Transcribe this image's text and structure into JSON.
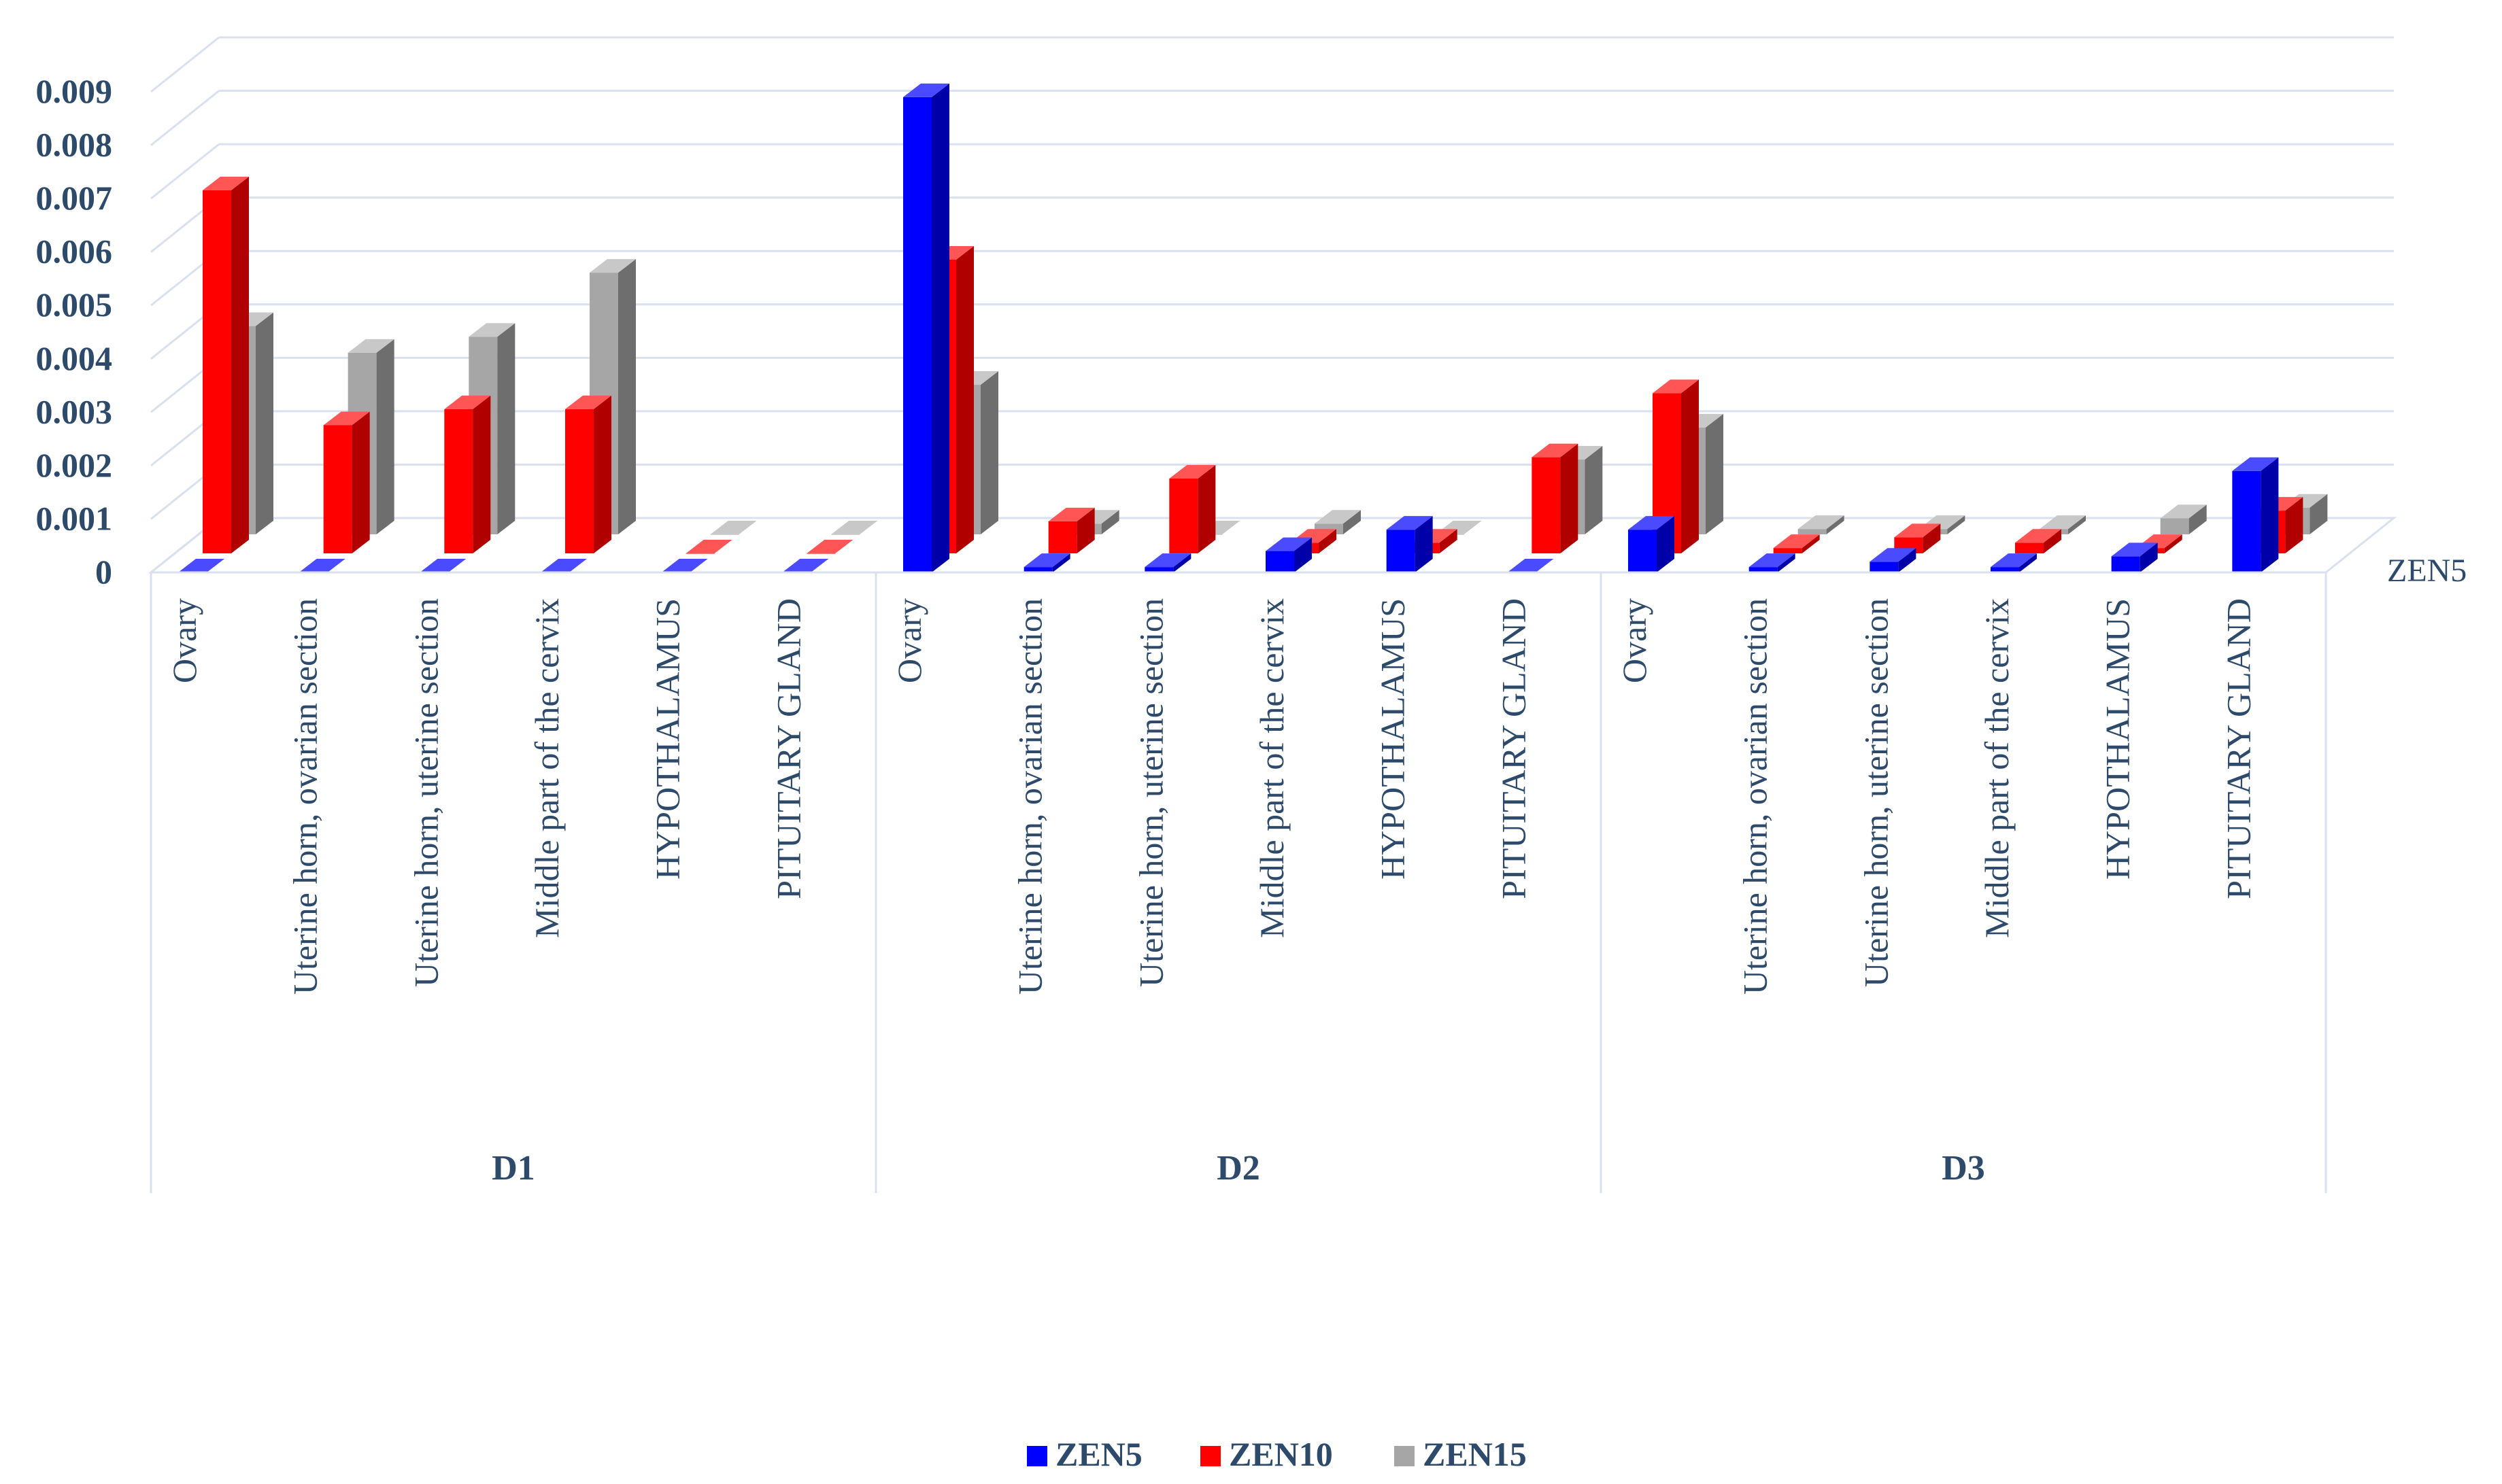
{
  "chart_data": {
    "type": "bar",
    "subtype": "3d-clustered-column",
    "title": "",
    "xlabel": "",
    "ylabel": "",
    "ylim": [
      0,
      0.009
    ],
    "yticks": [
      "0",
      "0.001",
      "0.002",
      "0.003",
      "0.004",
      "0.005",
      "0.006",
      "0.007",
      "0.008",
      "0.009"
    ],
    "yticks_values": [
      0,
      0.001,
      0.002,
      0.003,
      0.004,
      0.005,
      0.006,
      0.007,
      0.008,
      0.009
    ],
    "grid": true,
    "legend_position": "bottom",
    "depth_axis_label": "ZEN5",
    "groups": [
      {
        "name": "D1",
        "categories": [
          "Ovary",
          "Uterine horn, ovarian section",
          "Uterine horn, uterine section",
          "Middle part of the cervix",
          "HYPOTHALAMUS",
          "PITUITARY GLAND"
        ]
      },
      {
        "name": "D2",
        "categories": [
          "Ovary",
          "Uterine horn, ovarian section",
          "Uterine horn, uterine section",
          "Middle part of the cervix",
          "HYPOTHALAMUS",
          "PITUITARY GLAND"
        ]
      },
      {
        "name": "D3",
        "categories": [
          "Ovary",
          "Uterine horn, ovarian section",
          "Uterine horn, uterine section",
          "Middle part of the cervix",
          "HYPOTHALAMUS",
          "PITUITARY GLAND"
        ]
      }
    ],
    "series": [
      {
        "name": "ZEN5",
        "color": "#0000ff",
        "side": "#0000a8",
        "top": "#4a4aff",
        "values": [
          0,
          0,
          0,
          0,
          0,
          0,
          0.0089,
          0.0001,
          0.0001,
          0.0004,
          0.0008,
          0,
          0.0008,
          0.0001,
          0.0002,
          0.0001,
          0.0003,
          0.0019
        ]
      },
      {
        "name": "ZEN10",
        "color": "#ff0000",
        "side": "#b00000",
        "top": "#ff5555",
        "values": [
          0.0068,
          0.0024,
          0.0027,
          0.0027,
          0,
          0,
          0.0055,
          0.0006,
          0.0014,
          0.0002,
          0.0002,
          0.0018,
          0.003,
          0.0001,
          0.0003,
          0.0002,
          0.0001,
          0.0008
        ]
      },
      {
        "name": "ZEN15",
        "color": "#a6a6a6",
        "side": "#6e6e6e",
        "top": "#c8c8c8",
        "values": [
          0.0039,
          0.0034,
          0.0037,
          0.0049,
          0,
          0,
          0.0028,
          0.0002,
          0,
          0.0002,
          0,
          0.0014,
          0.002,
          0.0001,
          0.0001,
          0.0001,
          0.0003,
          0.0005
        ]
      }
    ]
  }
}
